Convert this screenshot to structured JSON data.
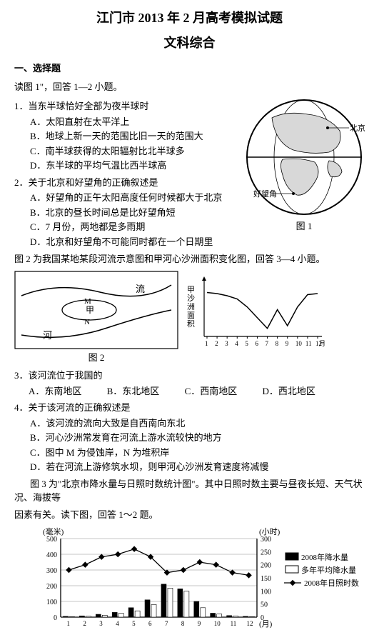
{
  "title_main": "江门市 2013 年 2 月高考模拟试题",
  "title_sub": "文科综合",
  "section1": "一、选择题",
  "instr1": "读图 1\"，回答 1—2 小题。",
  "q1": {
    "stem": "1．当东半球恰好全部为夜半球时",
    "opts": [
      "A．太阳直射在太平洋上",
      "B．地球上新一天的范围比旧一天的范围大",
      "C．南半球获得的太阳辐射比北半球多",
      "D．东半球的平均气温比西半球高"
    ]
  },
  "q2": {
    "stem": "2．关于北京和好望角的正确叙述是",
    "opts": [
      "A．好望角的正午太阳高度任何时候都大于北京",
      "B．北京的昼长时间总是比好望角短",
      "C．7 月份，两地都是多雨期",
      "D．北京和好望角不可能同时都在一个日期里"
    ]
  },
  "fig1": {
    "label": "图 1",
    "beijing": "北京",
    "cape": "好望角",
    "land_fill": "#d8d8d8",
    "stroke": "#000"
  },
  "instr2": "图 2 为我国某地某段河流示意图和甲河心沙洲面积变化图，回答 3—4 小题。",
  "fig2": {
    "label": "图 2",
    "river_labels": {
      "flow": "流",
      "riv": "河",
      "jia": "甲",
      "M": "M",
      "N": "N"
    },
    "stroke": "#000",
    "chart": {
      "ylabel": "甲沙洲面积",
      "months": [
        1,
        2,
        3,
        4,
        5,
        6,
        7,
        8,
        9,
        10,
        11,
        12
      ],
      "month_suffix": "月",
      "values": [
        0.82,
        0.8,
        0.76,
        0.7,
        0.55,
        0.35,
        0.15,
        0.5,
        0.2,
        0.55,
        0.78,
        0.8
      ]
    }
  },
  "q3": {
    "stem": "3．该河流位于我国的",
    "opts": [
      "A．东南地区",
      "B．东北地区",
      "C．西南地区",
      "D．西北地区"
    ]
  },
  "q4": {
    "stem": "4．关于该河流的正确叙述是",
    "opts": [
      "A．该河流的流向大致是自西南向东北",
      "B．河心沙洲常发育在河流上游水流较快的地方",
      "C．图中 M 为侵蚀岸，N 为堆积岸",
      "D．若在河流上游修筑水坝，则甲河心沙洲发育速度将减慢"
    ]
  },
  "instr3a": "图 3 为\"北京市降水量与日照时数统计图\"。其中日照时数主要与昼夜长短、天气状况、海拔等",
  "instr3b": "因素有关。读下图，回答 1～2 题。",
  "fig3": {
    "left_axis": {
      "unit": "(毫米)",
      "ticks": [
        0,
        100,
        200,
        300,
        400,
        500
      ]
    },
    "right_axis": {
      "unit": "(小时)",
      "ticks": [
        0,
        50,
        100,
        150,
        200,
        250,
        300
      ]
    },
    "x_unit": "(月)",
    "months": [
      1,
      2,
      3,
      4,
      5,
      6,
      7,
      8,
      9,
      10,
      11,
      12
    ],
    "legend": [
      "2008年降水量",
      "多年平均降水量",
      "2008年日照时数"
    ],
    "bar_fill_2008": "#000000",
    "bar_fill_avg": "#ffffff",
    "line_color": "#000000",
    "grid_color": "#b0b0b0",
    "bar_2008": [
      5,
      8,
      18,
      30,
      60,
      110,
      210,
      180,
      100,
      25,
      10,
      5
    ],
    "bar_avg": [
      3,
      6,
      12,
      25,
      40,
      80,
      185,
      165,
      60,
      20,
      8,
      3
    ],
    "sunshine": [
      180,
      200,
      230,
      240,
      260,
      230,
      170,
      180,
      210,
      200,
      170,
      160
    ]
  }
}
